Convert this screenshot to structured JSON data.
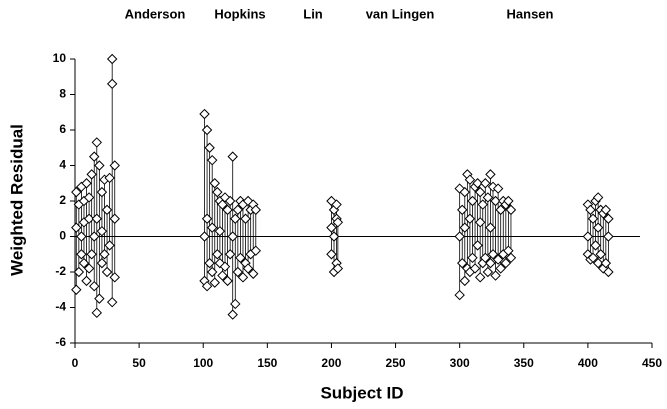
{
  "chart_data": {
    "type": "scatter",
    "annotations": [
      "Anderson",
      "Hopkins",
      "Lin",
      "van Lingen",
      "Hansen"
    ],
    "x_label": "Subject ID",
    "y_label": "Weighted Residual",
    "xlim": [
      0,
      450
    ],
    "xticks": [
      0,
      50,
      100,
      150,
      200,
      250,
      300,
      350,
      400,
      450
    ],
    "ylim": [
      -6,
      10
    ],
    "yticks": [
      -6,
      -4,
      -2,
      0,
      2,
      4,
      6,
      8,
      10
    ],
    "color": "#000000",
    "x": [
      1,
      1,
      1,
      3,
      3,
      5,
      5,
      5,
      7,
      7,
      7,
      9,
      9,
      11,
      11,
      11,
      13,
      13,
      15,
      15,
      15,
      17,
      17,
      17,
      19,
      19,
      21,
      21,
      21,
      23,
      23,
      25,
      25,
      27,
      27,
      29,
      29,
      29,
      31,
      31,
      31,
      101,
      101,
      101,
      103,
      103,
      103,
      105,
      105,
      107,
      107,
      107,
      109,
      109,
      111,
      111,
      113,
      113,
      113,
      115,
      115,
      117,
      117,
      119,
      119,
      121,
      121,
      123,
      123,
      123,
      125,
      125,
      127,
      127,
      129,
      129,
      131,
      131,
      133,
      133,
      135,
      135,
      137,
      137,
      139,
      139,
      141,
      141,
      200,
      200,
      200,
      202,
      202,
      202,
      204,
      204,
      204,
      205,
      205,
      300,
      300,
      300,
      302,
      302,
      304,
      304,
      304,
      306,
      306,
      308,
      308,
      308,
      310,
      310,
      312,
      312,
      314,
      314,
      316,
      316,
      316,
      318,
      318,
      320,
      320,
      322,
      322,
      324,
      324,
      324,
      326,
      326,
      328,
      328,
      330,
      330,
      332,
      332,
      334,
      334,
      336,
      336,
      338,
      338,
      340,
      340,
      400,
      400,
      400,
      402,
      402,
      404,
      404,
      406,
      406,
      408,
      408,
      408,
      410,
      410,
      412,
      412,
      414,
      414,
      416,
      416,
      416
    ],
    "values": [
      -3,
      2.5,
      0.5,
      -2,
      1.8,
      2.8,
      -1,
      0,
      -1.5,
      2,
      0.8,
      3,
      -2.5,
      1,
      -1.8,
      2.2,
      -1,
      3.5,
      4.5,
      -2.8,
      0,
      5.3,
      -4.3,
      1,
      4,
      -3.5,
      2.5,
      -1.5,
      0.3,
      3.2,
      -1,
      -2,
      1.5,
      3.3,
      -0.5,
      10,
      8.6,
      -3.7,
      4,
      -2.3,
      1,
      6.9,
      -2.5,
      0,
      6,
      -2.8,
      1,
      5,
      -1.5,
      4.3,
      -2,
      0.5,
      3,
      -2.6,
      2.5,
      -1,
      2,
      -1.5,
      0.3,
      1.8,
      -2.2,
      2.2,
      -1.7,
      1.5,
      -2.5,
      2,
      -1,
      4.5,
      -4.4,
      0,
      1,
      -3.8,
      1.5,
      -2,
      2,
      -1.2,
      1.8,
      -2.3,
      1,
      -1.5,
      2,
      -1.8,
      1.5,
      -1,
      1.8,
      -2.1,
      1.5,
      -0.8,
      2,
      -1,
      0.5,
      1.5,
      -2,
      0,
      1.8,
      -1.5,
      1,
      -1.8,
      0.8,
      2.7,
      -3.3,
      0,
      1.5,
      -1.5,
      2.5,
      -2.5,
      0.5,
      3.5,
      -1.8,
      3.2,
      -2,
      1,
      2,
      -1.2,
      2.8,
      -1.8,
      3,
      -0.5,
      2.5,
      -2.3,
      0.8,
      1.8,
      -1.5,
      3,
      -1.2,
      2.2,
      -2,
      3.5,
      -1.5,
      0.5,
      2.8,
      -1,
      2,
      -2.2,
      2.7,
      -1.3,
      1.5,
      -1.8,
      2,
      -1,
      1.8,
      -1.5,
      2,
      -0.8,
      1.5,
      -1.2,
      1.8,
      -1,
      0,
      1.5,
      -1.3,
      1,
      -1.2,
      2,
      -0.5,
      2.2,
      -1.5,
      0.5,
      1.5,
      -1,
      1.3,
      -1.8,
      1.5,
      -1.5,
      1,
      -2,
      0
    ]
  }
}
